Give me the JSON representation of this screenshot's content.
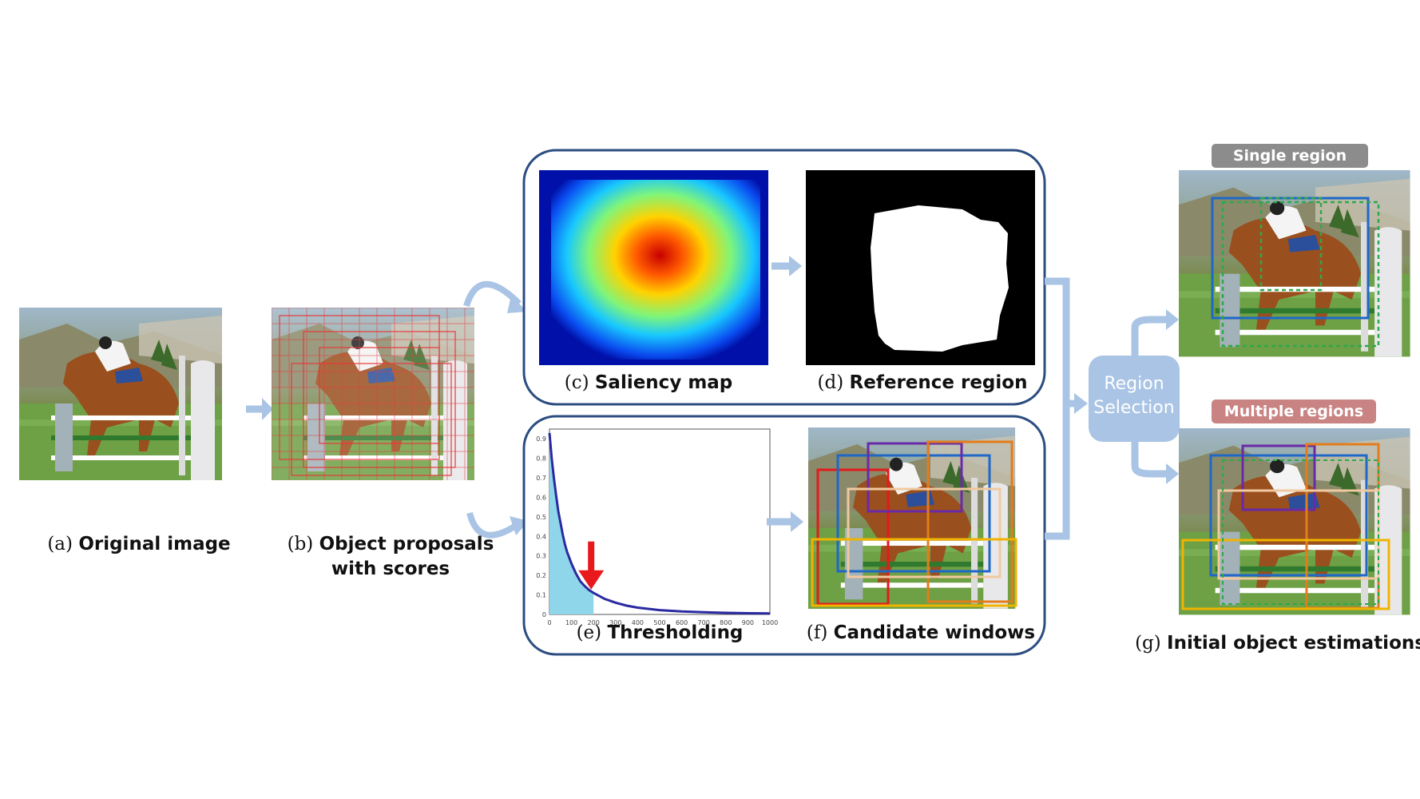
{
  "captions": {
    "a": {
      "prefix": "(a)",
      "label": "Original image"
    },
    "b": {
      "prefix": "(b)",
      "label_line1": "Object proposals",
      "label_line2": "with scores"
    },
    "c": {
      "prefix": "(c)",
      "label": "Saliency map"
    },
    "d": {
      "prefix": "(d)",
      "label": "Reference region"
    },
    "e": {
      "prefix": "(e)",
      "label": "Thresholding"
    },
    "f": {
      "prefix": "(f)",
      "label": "Candidate windows"
    },
    "g": {
      "prefix": "(g)",
      "label": "Initial object estimations"
    }
  },
  "region_selection": {
    "line1": "Region",
    "line2": "Selection"
  },
  "pills": {
    "single": {
      "label": "Single region",
      "color": "#8c8c8c"
    },
    "multiple": {
      "label": "Multiple regions",
      "color": "#c98383"
    }
  },
  "chart_data": {
    "type": "area",
    "xticks": [
      "0",
      "100",
      "200",
      "300",
      "400",
      "500",
      "600",
      "700",
      "800",
      "900",
      "1000"
    ],
    "yticks": [
      "0",
      "0.1",
      "0.2",
      "0.3",
      "0.4",
      "0.5",
      "0.6",
      "0.7",
      "0.8",
      "0.9"
    ],
    "xlim": [
      0,
      1000
    ],
    "ylim": [
      0,
      0.95
    ],
    "series": [
      {
        "x": [
          0,
          10,
          20,
          30,
          40,
          50,
          60,
          70,
          80,
          100,
          120,
          140,
          160,
          180,
          200,
          250,
          300,
          350,
          400,
          500,
          600,
          700,
          800,
          900,
          1000
        ],
        "y": [
          0.93,
          0.8,
          0.7,
          0.61,
          0.53,
          0.47,
          0.41,
          0.36,
          0.32,
          0.26,
          0.21,
          0.17,
          0.145,
          0.125,
          0.11,
          0.08,
          0.06,
          0.045,
          0.035,
          0.022,
          0.015,
          0.011,
          0.008,
          0.006,
          0.005
        ]
      }
    ],
    "threshold_x": 200,
    "colors": {
      "line": "#2a2aa0",
      "fill": "#8fd6ea",
      "arrow": "#e8191c"
    }
  },
  "colors": {
    "flow_arrow": "#a9c4e4",
    "panel_border": "#2c4d80",
    "region_box": "#a9c4e4"
  }
}
